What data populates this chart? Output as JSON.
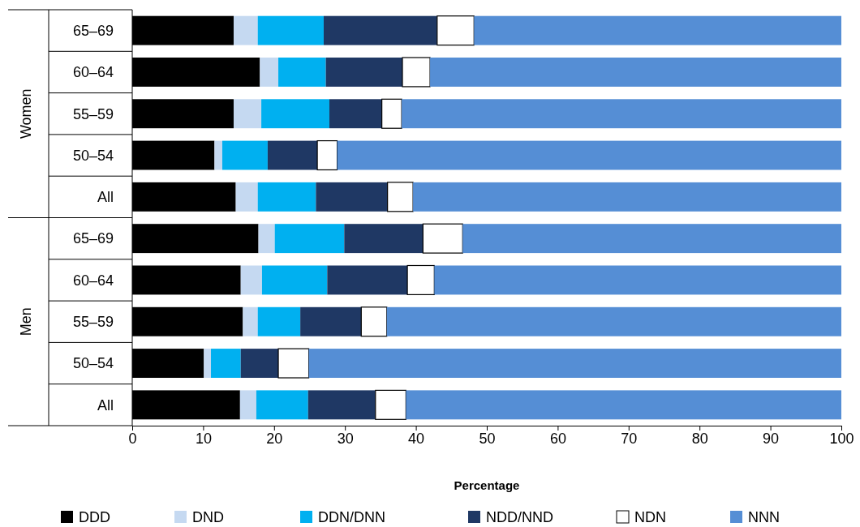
{
  "chart_data": {
    "type": "bar",
    "orientation": "horizontal",
    "stacked": true,
    "xlabel": "Percentage",
    "categories": [
      "65–69",
      "60–64",
      "55–59",
      "50–54",
      "All",
      "65–69",
      "60–64",
      "55–59",
      "50–54",
      "All"
    ],
    "annotations": [
      "Women",
      "Men"
    ],
    "series": [
      {
        "name": "DDD",
        "color": "#000000",
        "values": [
          14.3,
          18.0,
          14.3,
          11.6,
          14.6,
          17.8,
          15.3,
          15.6,
          10.1,
          15.2
        ]
      },
      {
        "name": "DND",
        "color": "#c5d9f1",
        "values": [
          3.4,
          2.6,
          3.9,
          1.1,
          3.1,
          2.3,
          3.0,
          2.1,
          1.0,
          2.3
        ]
      },
      {
        "name": "DDN/DNN",
        "color": "#00b0f0",
        "values": [
          9.3,
          6.7,
          9.6,
          6.4,
          8.2,
          9.8,
          9.2,
          6.0,
          4.2,
          7.3
        ]
      },
      {
        "name": "NDD/NND",
        "color": "#1f3864",
        "values": [
          16.0,
          10.8,
          7.4,
          7.0,
          10.1,
          11.1,
          11.3,
          8.6,
          5.3,
          9.5
        ]
      },
      {
        "name": "NDN",
        "color": "#ffffff",
        "values": [
          5.2,
          3.9,
          2.8,
          2.8,
          3.6,
          5.6,
          3.8,
          3.6,
          4.3,
          4.3
        ]
      },
      {
        "name": "NNN",
        "color": "#558ed5",
        "values": [
          51.8,
          58.0,
          62.0,
          71.1,
          60.4,
          53.4,
          57.4,
          64.1,
          75.1,
          61.4
        ]
      }
    ],
    "xlim": [
      0,
      100
    ],
    "xticks": [
      0,
      10,
      20,
      30,
      40,
      50,
      60,
      70,
      80,
      90,
      100
    ],
    "legend": "bottom",
    "grid": false
  }
}
